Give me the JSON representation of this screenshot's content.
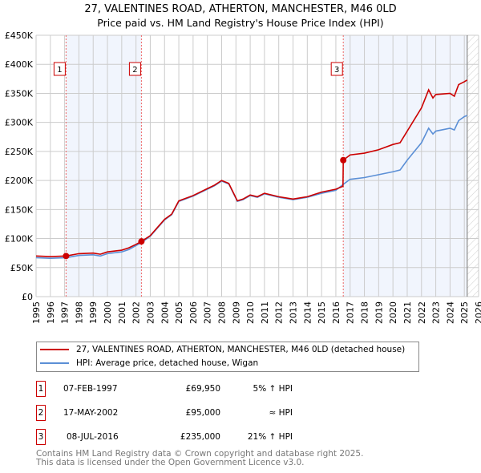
{
  "chart_data": {
    "type": "line",
    "title": "27, VALENTINES ROAD, ATHERTON, MANCHESTER, M46 0LD",
    "subtitle": "Price paid vs. HM Land Registry's House Price Index (HPI)",
    "xlim": [
      1995,
      2026
    ],
    "ylim": [
      0,
      450000
    ],
    "x_ticks": [
      "1995",
      "1996",
      "1997",
      "1998",
      "1999",
      "2000",
      "2001",
      "2002",
      "2003",
      "2004",
      "2005",
      "2006",
      "2007",
      "2008",
      "2009",
      "2010",
      "2011",
      "2012",
      "2013",
      "2014",
      "2015",
      "2016",
      "2017",
      "2018",
      "2019",
      "2020",
      "2021",
      "2022",
      "2023",
      "2024",
      "2025",
      "2026"
    ],
    "y_ticks": [
      {
        "v": 0,
        "label": "£0"
      },
      {
        "v": 50000,
        "label": "£50K"
      },
      {
        "v": 100000,
        "label": "£100K"
      },
      {
        "v": 150000,
        "label": "£150K"
      },
      {
        "v": 200000,
        "label": "£200K"
      },
      {
        "v": 250000,
        "label": "£250K"
      },
      {
        "v": 300000,
        "label": "£300K"
      },
      {
        "v": 350000,
        "label": "£350K"
      },
      {
        "v": 400000,
        "label": "£400K"
      },
      {
        "v": 450000,
        "label": "£450K"
      }
    ],
    "series": [
      {
        "name": "27, VALENTINES ROAD, ATHERTON, MANCHESTER, M46 0LD (detached house)",
        "color": "#cc0000",
        "x": [
          1995,
          1996,
          1997.1,
          1998,
          1999,
          1999.5,
          2000,
          2001,
          2001.5,
          2002,
          2002.38,
          2003,
          2004,
          2004.5,
          2005,
          2006,
          2007,
          2007.5,
          2008,
          2008.5,
          2009.1,
          2009.5,
          2010,
          2010.5,
          2011,
          2012,
          2013,
          2014,
          2015,
          2016,
          2016.5,
          2016.52,
          2017,
          2018,
          2019,
          2020,
          2020.5,
          2021,
          2021.5,
          2022,
          2022.5,
          2022.8,
          2023,
          2024,
          2024.3,
          2024.6,
          2025,
          2025.2
        ],
        "y": [
          70000,
          69000,
          69950,
          74000,
          75000,
          73000,
          77000,
          80000,
          84000,
          90000,
          95000,
          105000,
          133000,
          142000,
          165000,
          174000,
          186000,
          192000,
          200000,
          195000,
          165000,
          168000,
          175000,
          172000,
          178000,
          172000,
          168000,
          172000,
          180000,
          185000,
          190000,
          235000,
          244000,
          247000,
          253000,
          262000,
          265000,
          285000,
          305000,
          325000,
          356000,
          342000,
          348000,
          350000,
          345000,
          365000,
          370000,
          373000
        ]
      },
      {
        "name": "HPI: Average price, detached house, Wigan",
        "color": "#5b8fd6",
        "x": [
          1995,
          1996,
          1997.1,
          1998,
          1999,
          1999.5,
          2000,
          2001,
          2001.5,
          2002,
          2002.38,
          2003,
          2004,
          2004.5,
          2005,
          2006,
          2007,
          2007.5,
          2008,
          2008.5,
          2009.1,
          2009.5,
          2010,
          2010.5,
          2011,
          2012,
          2013,
          2014,
          2015,
          2016,
          2016.5,
          2017,
          2018,
          2019,
          2020,
          2020.5,
          2021,
          2021.5,
          2022,
          2022.5,
          2022.8,
          2023,
          2024,
          2024.3,
          2024.6,
          2025,
          2025.2
        ],
        "y": [
          67000,
          66000,
          67000,
          71000,
          72000,
          70000,
          74000,
          77000,
          81000,
          88000,
          93000,
          104000,
          132000,
          141000,
          164000,
          173000,
          185000,
          191000,
          199000,
          194000,
          164000,
          167000,
          174000,
          171000,
          177000,
          171000,
          167000,
          171000,
          178000,
          183000,
          193000,
          202000,
          205000,
          210000,
          215000,
          218000,
          235000,
          250000,
          265000,
          290000,
          280000,
          285000,
          290000,
          287000,
          303000,
          310000,
          312000
        ]
      }
    ],
    "sales": [
      {
        "n": "1",
        "x": 1997.1,
        "y": 69950,
        "date": "07-FEB-1997",
        "price": "£69,950",
        "hpi": "5% ↑ HPI"
      },
      {
        "n": "2",
        "x": 2002.38,
        "y": 95000,
        "date": "17-MAY-2002",
        "price": "£95,000",
        "hpi": "≈ HPI"
      },
      {
        "n": "3",
        "x": 2016.52,
        "y": 235000,
        "date": "08-JUL-2016",
        "price": "£235,000",
        "hpi": "21% ↑ HPI"
      }
    ],
    "data_end": 2025.2
  },
  "legend": {
    "red": "27, VALENTINES ROAD, ATHERTON, MANCHESTER, M46 0LD (detached house)",
    "blue": "HPI: Average price, detached house, Wigan"
  },
  "footer": {
    "line1": "Contains HM Land Registry data © Crown copyright and database right 2025.",
    "line2": "This data is licensed under the Open Government Licence v3.0."
  }
}
